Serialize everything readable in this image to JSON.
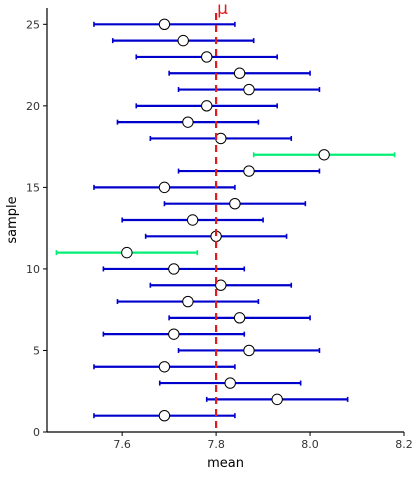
{
  "chart_data": {
    "type": "scatter",
    "subtype": "confidence-interval-plot",
    "title": "",
    "xlabel": "mean",
    "ylabel": "sample",
    "xlim": [
      7.44,
      8.2
    ],
    "ylim": [
      0,
      26
    ],
    "x_ticks": [
      7.6,
      7.8,
      8.0,
      8.2
    ],
    "y_ticks": [
      0,
      5,
      10,
      15,
      20,
      25
    ],
    "grid": false,
    "reference_line": {
      "x": 7.8,
      "label": "μ",
      "color": "#e31a1c",
      "style": "dashed"
    },
    "colors": {
      "covers_mu": "#0000cc",
      "misses_mu": "#00ee76",
      "point_fill": "#ffffff",
      "axis": "#000000"
    },
    "intervals": [
      {
        "sample": 1,
        "mean": 7.69,
        "lower": 7.54,
        "upper": 7.84,
        "covers_mu": true
      },
      {
        "sample": 2,
        "mean": 7.93,
        "lower": 7.78,
        "upper": 8.08,
        "covers_mu": true
      },
      {
        "sample": 3,
        "mean": 7.83,
        "lower": 7.68,
        "upper": 7.98,
        "covers_mu": true
      },
      {
        "sample": 4,
        "mean": 7.69,
        "lower": 7.54,
        "upper": 7.84,
        "covers_mu": true
      },
      {
        "sample": 5,
        "mean": 7.87,
        "lower": 7.72,
        "upper": 8.02,
        "covers_mu": true
      },
      {
        "sample": 6,
        "mean": 7.71,
        "lower": 7.56,
        "upper": 7.86,
        "covers_mu": true
      },
      {
        "sample": 7,
        "mean": 7.85,
        "lower": 7.7,
        "upper": 8.0,
        "covers_mu": true
      },
      {
        "sample": 8,
        "mean": 7.74,
        "lower": 7.59,
        "upper": 7.89,
        "covers_mu": true
      },
      {
        "sample": 9,
        "mean": 7.81,
        "lower": 7.66,
        "upper": 7.96,
        "covers_mu": true
      },
      {
        "sample": 10,
        "mean": 7.71,
        "lower": 7.56,
        "upper": 7.86,
        "covers_mu": true
      },
      {
        "sample": 11,
        "mean": 7.61,
        "lower": 7.46,
        "upper": 7.76,
        "covers_mu": false
      },
      {
        "sample": 12,
        "mean": 7.8,
        "lower": 7.65,
        "upper": 7.95,
        "covers_mu": true
      },
      {
        "sample": 13,
        "mean": 7.75,
        "lower": 7.6,
        "upper": 7.9,
        "covers_mu": true
      },
      {
        "sample": 14,
        "mean": 7.84,
        "lower": 7.69,
        "upper": 7.99,
        "covers_mu": true
      },
      {
        "sample": 15,
        "mean": 7.69,
        "lower": 7.54,
        "upper": 7.84,
        "covers_mu": true
      },
      {
        "sample": 16,
        "mean": 7.87,
        "lower": 7.72,
        "upper": 8.02,
        "covers_mu": true
      },
      {
        "sample": 17,
        "mean": 8.03,
        "lower": 7.88,
        "upper": 8.18,
        "covers_mu": false
      },
      {
        "sample": 18,
        "mean": 7.81,
        "lower": 7.66,
        "upper": 7.96,
        "covers_mu": true
      },
      {
        "sample": 19,
        "mean": 7.74,
        "lower": 7.59,
        "upper": 7.89,
        "covers_mu": true
      },
      {
        "sample": 20,
        "mean": 7.78,
        "lower": 7.63,
        "upper": 7.93,
        "covers_mu": true
      },
      {
        "sample": 21,
        "mean": 7.87,
        "lower": 7.72,
        "upper": 8.02,
        "covers_mu": true
      },
      {
        "sample": 22,
        "mean": 7.85,
        "lower": 7.7,
        "upper": 8.0,
        "covers_mu": true
      },
      {
        "sample": 23,
        "mean": 7.78,
        "lower": 7.63,
        "upper": 7.93,
        "covers_mu": true
      },
      {
        "sample": 24,
        "mean": 7.73,
        "lower": 7.58,
        "upper": 7.88,
        "covers_mu": true
      },
      {
        "sample": 25,
        "mean": 7.69,
        "lower": 7.54,
        "upper": 7.84,
        "covers_mu": true
      }
    ]
  }
}
